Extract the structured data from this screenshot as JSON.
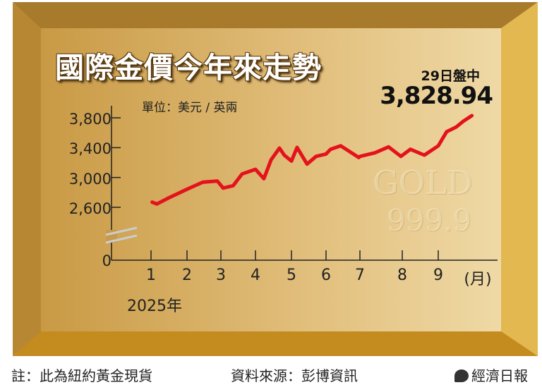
{
  "title": "國際金價今年來走勢",
  "unit_label": "單位：美元 / 英兩",
  "latest": {
    "label": "29日盤中",
    "value": "3,828.94"
  },
  "watermark": {
    "line1": "GOLD",
    "line2": "999.9"
  },
  "footer": {
    "note": "註：此為紐約黃金現貨",
    "source": "資料來源：彭博資訊",
    "publisher": "經濟日報"
  },
  "colors": {
    "line": "#e3121b",
    "gold_dark": "#c08a2a",
    "gold_light": "#ecd49a"
  },
  "chart_data": {
    "type": "line",
    "title": "國際金價今年來走勢",
    "ylabel": "單位：美元 / 英兩",
    "xlabel": "(月)",
    "year_label": "2025年",
    "y_axis_break": true,
    "y_ticks": [
      "0",
      "2,600",
      "3,000",
      "3,400",
      "3,800"
    ],
    "y_tick_values": [
      0,
      2600,
      3000,
      3400,
      3800
    ],
    "x_ticks": [
      "1",
      "2",
      "3",
      "4",
      "5",
      "6",
      "7",
      "8",
      "9"
    ],
    "x_unit": "(月)",
    "grid": false,
    "series": [
      {
        "points": [
          [
            "01-02",
            2669
          ],
          [
            "01-06",
            2644
          ],
          [
            "01-17",
            2732
          ],
          [
            "02-01",
            2842
          ],
          [
            "02-14",
            2937
          ],
          [
            "02-26",
            2953
          ],
          [
            "03-03",
            2858
          ],
          [
            "03-12",
            2890
          ],
          [
            "03-20",
            3047
          ],
          [
            "04-01",
            3110
          ],
          [
            "04-08",
            2984
          ],
          [
            "04-14",
            3236
          ],
          [
            "04-21",
            3394
          ],
          [
            "04-25",
            3300
          ],
          [
            "05-01",
            3220
          ],
          [
            "05-06",
            3403
          ],
          [
            "05-15",
            3180
          ],
          [
            "05-23",
            3283
          ],
          [
            "06-01",
            3315
          ],
          [
            "06-05",
            3378
          ],
          [
            "06-14",
            3425
          ],
          [
            "06-30",
            3268
          ],
          [
            "07-01",
            3283
          ],
          [
            "07-12",
            3331
          ],
          [
            "07-22",
            3410
          ],
          [
            "07-31",
            3283
          ],
          [
            "08-08",
            3378
          ],
          [
            "08-20",
            3300
          ],
          [
            "09-01",
            3425
          ],
          [
            "09-08",
            3614
          ],
          [
            "09-16",
            3677
          ],
          [
            "09-22",
            3756
          ],
          [
            "09-29",
            3829
          ]
        ]
      }
    ]
  }
}
